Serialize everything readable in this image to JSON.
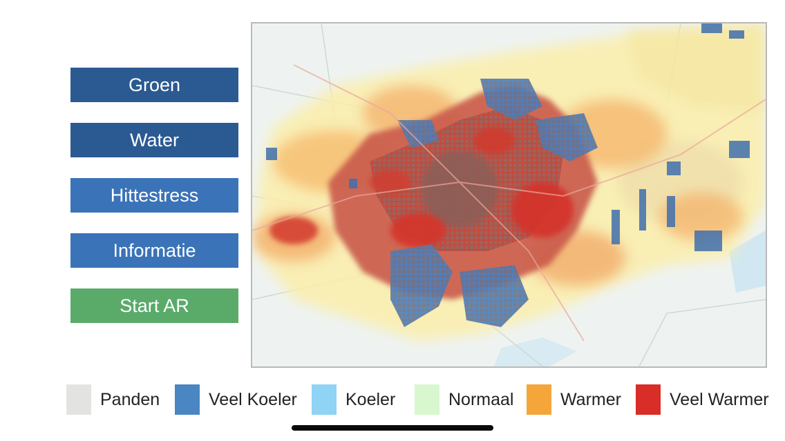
{
  "menu": {
    "buttons": [
      {
        "label": "Groen",
        "color": "#2b5a92"
      },
      {
        "label": "Water",
        "color": "#2b5a92"
      },
      {
        "label": "Hittestress",
        "color": "#3a73b8"
      },
      {
        "label": "Informatie",
        "color": "#3a73b8"
      },
      {
        "label": "Start AR",
        "color": "#5aab6a"
      }
    ]
  },
  "map": {
    "subject": "hittestress-kaart",
    "colors": {
      "base": "#eef3f1",
      "water": "#c9e4f3",
      "buildings": "#8a6a66"
    }
  },
  "legend": [
    {
      "label": "Panden",
      "color": "#e3e4e2"
    },
    {
      "label": "Veel Koeler",
      "color": "#4a86c2"
    },
    {
      "label": "Koeler",
      "color": "#8fd3f5"
    },
    {
      "label": "Normaal",
      "color": "#d8f7cf"
    },
    {
      "label": "Warmer",
      "color": "#f4a63a"
    },
    {
      "label": "Veel Warmer",
      "color": "#d92d27"
    }
  ]
}
